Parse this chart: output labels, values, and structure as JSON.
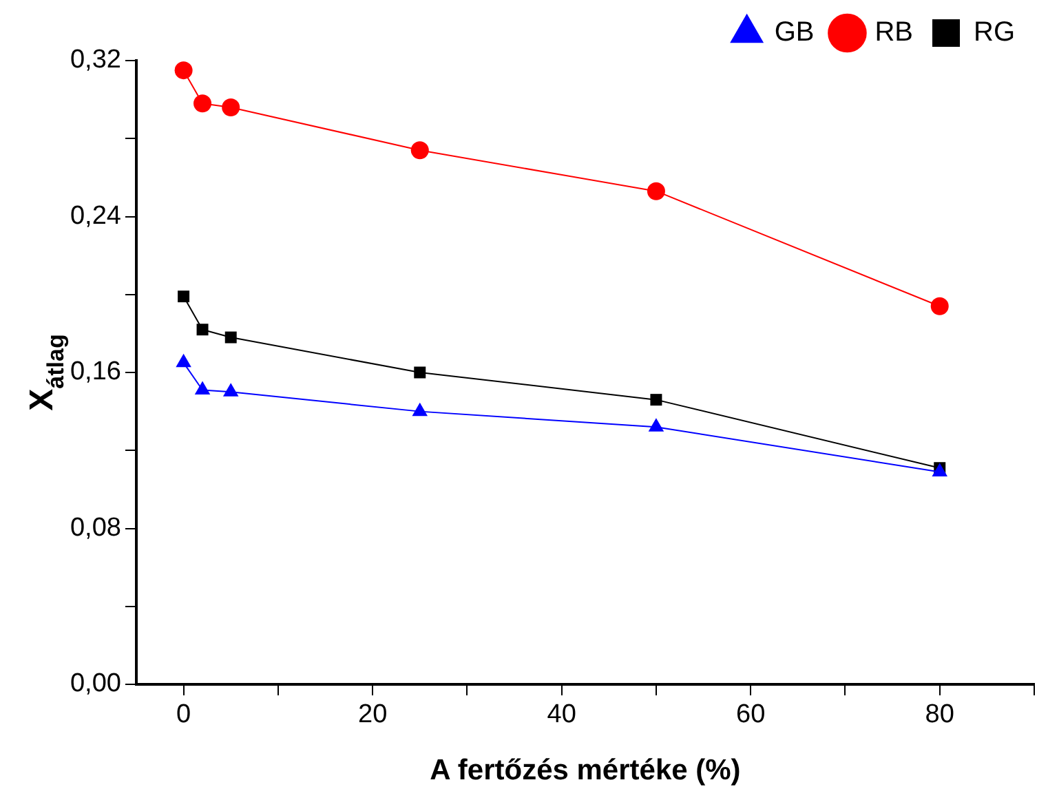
{
  "chart_data": {
    "type": "line",
    "xlabel": "A fertőzés mértéke (%)",
    "ylabel": "X$_{átlag}$",
    "x": [
      0,
      2,
      5,
      25,
      50,
      80
    ],
    "series": [
      {
        "name": "RG",
        "color": "#000000",
        "marker": "square",
        "values": [
          0.199,
          0.182,
          0.178,
          0.16,
          0.146,
          0.111
        ]
      },
      {
        "name": "RB",
        "color": "#ff0000",
        "marker": "circle",
        "values": [
          0.315,
          0.298,
          0.296,
          0.274,
          0.253,
          0.194
        ]
      },
      {
        "name": "GB",
        "color": "#0000ff",
        "marker": "triangle",
        "values": [
          0.165,
          0.151,
          0.15,
          0.14,
          0.132,
          0.109
        ]
      }
    ],
    "xlim": [
      -5,
      90
    ],
    "xticks": [
      0,
      {
        "value": 10,
        "label": null
      },
      20,
      {
        "value": 30,
        "label": null
      },
      40,
      {
        "value": 50,
        "label": null
      },
      60,
      {
        "value": 70,
        "label": null
      },
      80,
      {
        "value": 90,
        "label": null
      }
    ],
    "ylim": [
      0,
      0.32
    ],
    "yticks": [
      {
        "value": 0,
        "label": "0,00"
      },
      {
        "value": 0.04,
        "label": null
      },
      {
        "value": 0.08,
        "label": "0,08"
      },
      {
        "value": 0.12,
        "label": null
      },
      {
        "value": 0.16,
        "label": "0,16"
      },
      {
        "value": 0.2,
        "label": null
      },
      {
        "value": 0.24,
        "label": "0,24"
      },
      {
        "value": 0.28,
        "label": null
      },
      {
        "value": 0.32,
        "label": "0,32"
      }
    ],
    "grid": false,
    "legend": "top right",
    "line_style": "solid"
  }
}
